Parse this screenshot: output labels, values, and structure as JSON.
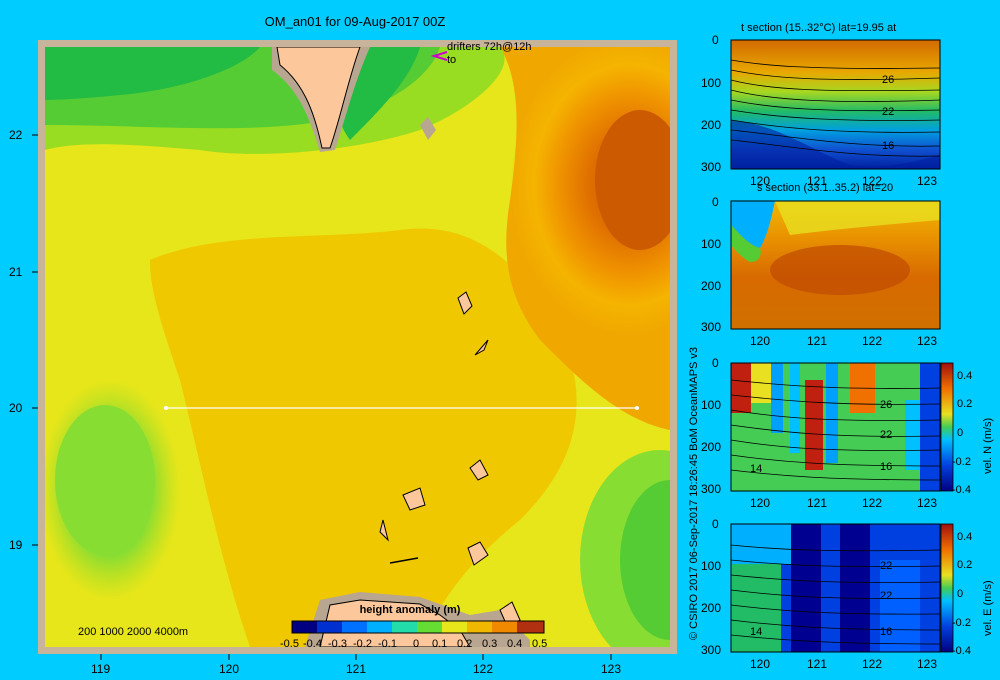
{
  "map": {
    "title": "OM_an01 for 09-Aug-2017 00Z",
    "drifters_label": "drifters 72h@12h",
    "drifters_to": "to",
    "depth_legend": "200  1000  2000  4000m",
    "lon_ticks": [
      "119",
      "120",
      "121",
      "122",
      "123"
    ],
    "lat_ticks": [
      "22",
      "21",
      "20",
      "19"
    ],
    "colorbar": {
      "title": "height anomaly  (m)",
      "ticks": [
        "-0.5",
        "-0.4",
        "-0.3",
        "-0.2",
        "-0.1",
        "0",
        "0.1",
        "0.2",
        "0.3",
        "0.4",
        "0.5"
      ]
    },
    "section_line": {
      "lat": 20,
      "lon_start": 119.5,
      "lon_end": 123.2
    }
  },
  "credit": "© CSIRO 2017   06-Sep-2017 18:26:45 BoM OceanMAPS v3",
  "sections": [
    {
      "title": "t section (15..32°C) lat=19.95 at",
      "x_ticks": [
        "120",
        "121",
        "122",
        "123"
      ],
      "y_ticks": [
        "0",
        "100",
        "200",
        "300"
      ],
      "contour_labels": [
        "26",
        "22",
        "16"
      ]
    },
    {
      "title": "s section (33.1..35.2) lat=20",
      "x_ticks": [
        "120",
        "121",
        "122",
        "123"
      ],
      "y_ticks": [
        "0",
        "100",
        "200",
        "300"
      ]
    },
    {
      "title": "",
      "x_ticks": [
        "120",
        "121",
        "122",
        "123"
      ],
      "y_ticks": [
        "0",
        "100",
        "200",
        "300"
      ],
      "contour_labels": [
        "26",
        "22",
        "14",
        "16"
      ],
      "colorbar_label": "vel. N  (m/s)",
      "colorbar_ticks": [
        "0.4",
        "0.2",
        "0",
        "-0.2",
        "-0.4"
      ]
    },
    {
      "title": "",
      "x_ticks": [
        "120",
        "121",
        "122",
        "123"
      ],
      "y_ticks": [
        "0",
        "100",
        "200",
        "300"
      ],
      "contour_labels": [
        "22",
        "22",
        "14",
        "16"
      ],
      "colorbar_label": "vel. E  (m/s)",
      "colorbar_ticks": [
        "0.4",
        "0.2",
        "0",
        "-0.2",
        "-0.4"
      ]
    }
  ]
}
